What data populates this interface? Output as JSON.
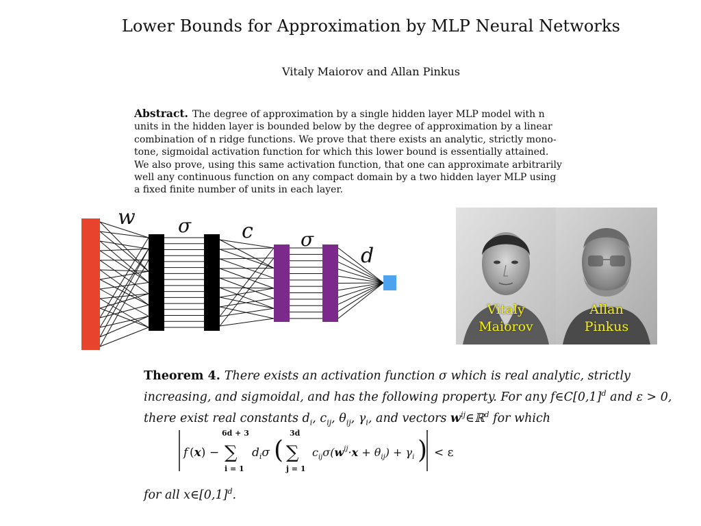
{
  "paper": {
    "title": "Lower Bounds for Approximation by MLP Neural Networks",
    "authors": "Vitaly Maiorov and Allan Pinkus",
    "abstract_label": "Abstract.",
    "abstract_lines": [
      "The degree of approximation by a single hidden layer MLP model with n",
      "units in the hidden layer is bounded below by the degree of approximation by a linear",
      "combination of n ridge functions. We prove that there exists an analytic, strictly mono-",
      "tone, sigmoidal activation function for which this lower bound is essentially attained.",
      "We also prove, using this same activation function, that one can approximate arbitrarily",
      "well any continuous function on any compact domain by a two hidden layer MLP using",
      "a fixed finite number of units in each layer."
    ]
  },
  "network": {
    "labels": {
      "w": "w",
      "sigma1": "σ",
      "c": "c",
      "sigma2": "σ",
      "d": "d"
    },
    "colors": {
      "input": "#e8432d",
      "hidden": "#000000",
      "hidden2": "#7b2a8c",
      "output": "#4da3ee"
    }
  },
  "photos": {
    "left_caption": [
      "Vitaly",
      "Maiorov"
    ],
    "right_caption": [
      "Allan",
      "Pinkus"
    ]
  },
  "theorem": {
    "heading": "Theorem 4.",
    "line1": "There exists an activation function σ which is real analytic, strictly",
    "line2": "increasing, and sigmoidal, and has the following property. For any f∈C[0,1]",
    "line2_sup": "d",
    "line2_tail": " and ε > 0,",
    "line3": "there exist real constants d",
    "formula": {
      "sum_outer_top": "6d + 3",
      "sum_outer_bottom": "i = 1",
      "sum_inner_top": "3d",
      "sum_inner_bottom": "j = 1",
      "rhs": "< ε"
    },
    "forall": "for all x∈[0,1]",
    "forall_sup": "d",
    "forall_end": "."
  }
}
